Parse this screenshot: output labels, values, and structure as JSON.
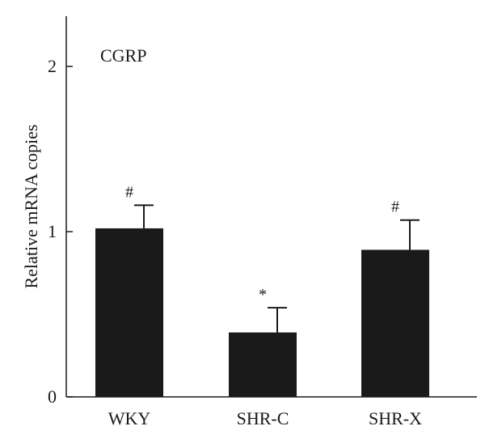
{
  "chart_data": {
    "type": "bar",
    "title": "CGRP",
    "xlabel": "",
    "ylabel": "Relative mRNA copies",
    "categories": [
      "WKY",
      "SHR-C",
      "SHR-X"
    ],
    "values": [
      1.02,
      0.39,
      0.89
    ],
    "errors": [
      0.14,
      0.15,
      0.18
    ],
    "annotations": [
      "#",
      "*",
      "#"
    ],
    "ylim": [
      0,
      2.3
    ],
    "yticks": [
      0,
      1,
      2
    ],
    "ytick_labels": [
      "0",
      "1",
      "2"
    ],
    "bar_color": "#1a1a1a",
    "grid": false,
    "legend": "none"
  }
}
